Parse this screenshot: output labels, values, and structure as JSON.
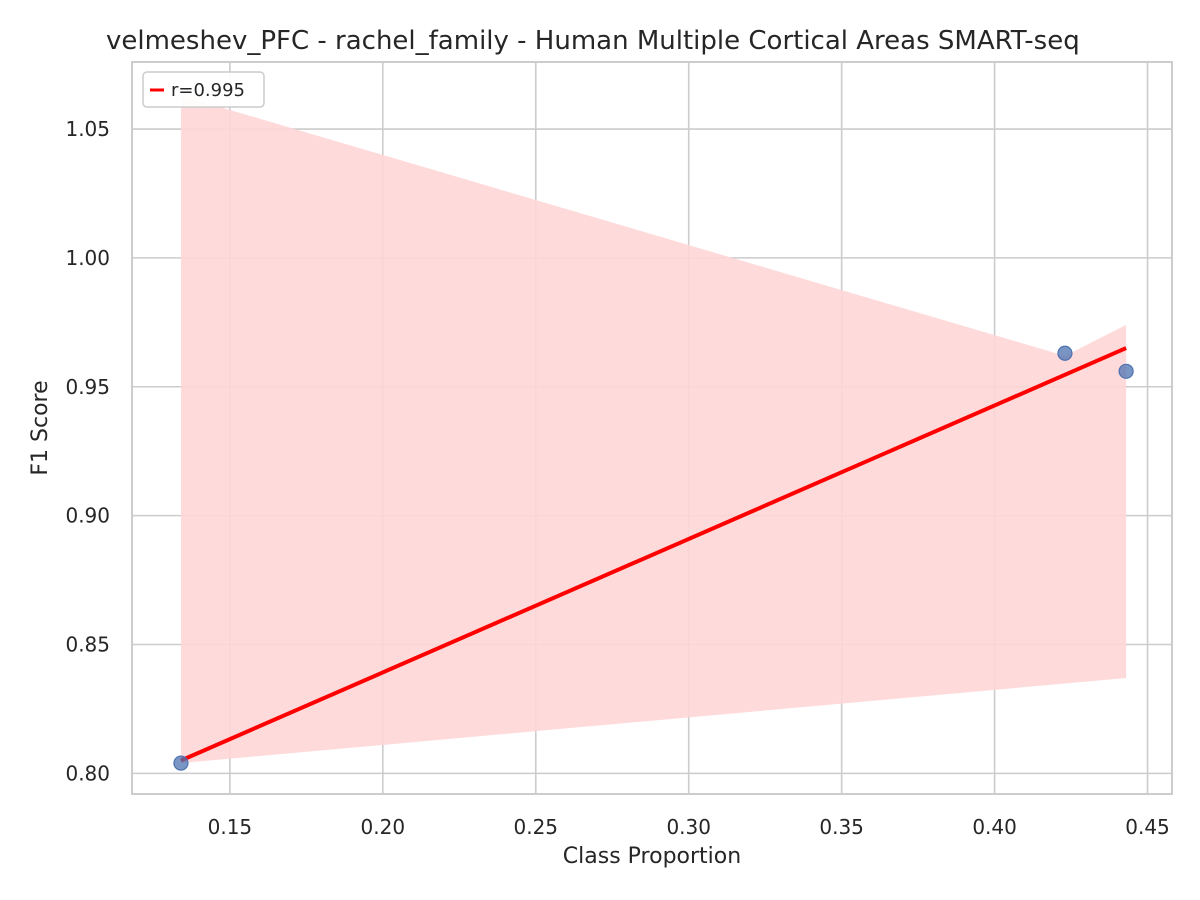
{
  "chart_data": {
    "type": "scatter",
    "title": "velmeshev_PFC - rachel_family - Human Multiple Cortical Areas SMART-seq",
    "xlabel": "Class Proportion",
    "ylabel": "F1 Score",
    "xlim": [
      0.118,
      0.458
    ],
    "ylim": [
      0.792,
      1.076
    ],
    "xticks": [
      0.15,
      0.2,
      0.25,
      0.3,
      0.35,
      0.4,
      0.45
    ],
    "xtick_labels": [
      "0.15",
      "0.20",
      "0.25",
      "0.30",
      "0.35",
      "0.40",
      "0.45"
    ],
    "yticks": [
      0.8,
      0.85,
      0.9,
      0.95,
      1.0,
      1.05
    ],
    "ytick_labels": [
      "0.80",
      "0.85",
      "0.90",
      "0.95",
      "1.00",
      "1.05"
    ],
    "grid": true,
    "legend_position": "top-left",
    "points": [
      {
        "x": 0.134,
        "y": 0.804
      },
      {
        "x": 0.423,
        "y": 0.963
      },
      {
        "x": 0.443,
        "y": 0.956
      }
    ],
    "point_color": "#4c72b0",
    "regression": {
      "label": "r=0.995",
      "color": "#ff0000",
      "x": [
        0.134,
        0.443
      ],
      "y": [
        0.805,
        0.965
      ],
      "ci_upper": [
        1.063,
        0.974
      ],
      "ci_lower": [
        0.804,
        0.837
      ],
      "ci_color": "#ffd6d7",
      "ci_upper_path": [
        {
          "x": 0.134,
          "y": 1.063
        },
        {
          "x": 0.423,
          "y": 0.962
        },
        {
          "x": 0.443,
          "y": 0.974
        }
      ]
    }
  }
}
